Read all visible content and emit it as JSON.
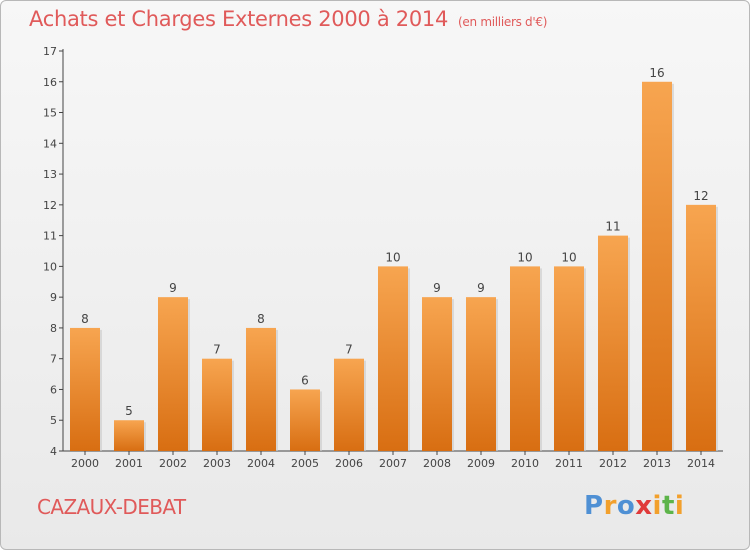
{
  "chart_data": {
    "type": "bar",
    "title": "Achats et Charges Externes 2000 à 2014",
    "subtitle": "(en milliers d'€)",
    "categories": [
      "2000",
      "2001",
      "2002",
      "2003",
      "2004",
      "2005",
      "2006",
      "2007",
      "2008",
      "2009",
      "2010",
      "2011",
      "2012",
      "2013",
      "2014"
    ],
    "values": [
      8,
      5,
      9,
      7,
      8,
      6,
      7,
      10,
      9,
      9,
      10,
      10,
      11,
      16,
      12
    ],
    "ylim": [
      4,
      17
    ],
    "yticks": [
      4,
      5,
      6,
      7,
      8,
      9,
      10,
      11,
      12,
      13,
      14,
      15,
      16,
      17
    ],
    "xlabel": "",
    "ylabel": "",
    "bar_color": "#f0922e",
    "grid": false
  },
  "place_name": "CAZAUX-DEBAT",
  "brand": {
    "text": "Proxiti",
    "letters": [
      {
        "char": "P",
        "color": "#4f90d4"
      },
      {
        "char": "r",
        "color": "#f2a02c"
      },
      {
        "char": "o",
        "color": "#4f90d4"
      },
      {
        "char": "x",
        "color": "#e03a3a"
      },
      {
        "char": "i",
        "color": "#f2a02c"
      },
      {
        "char": "t",
        "color": "#5db44a"
      },
      {
        "char": "i",
        "color": "#f2a02c"
      }
    ]
  },
  "colors": {
    "title": "#e05a5a",
    "axis": "#444444",
    "label": "#444444"
  }
}
